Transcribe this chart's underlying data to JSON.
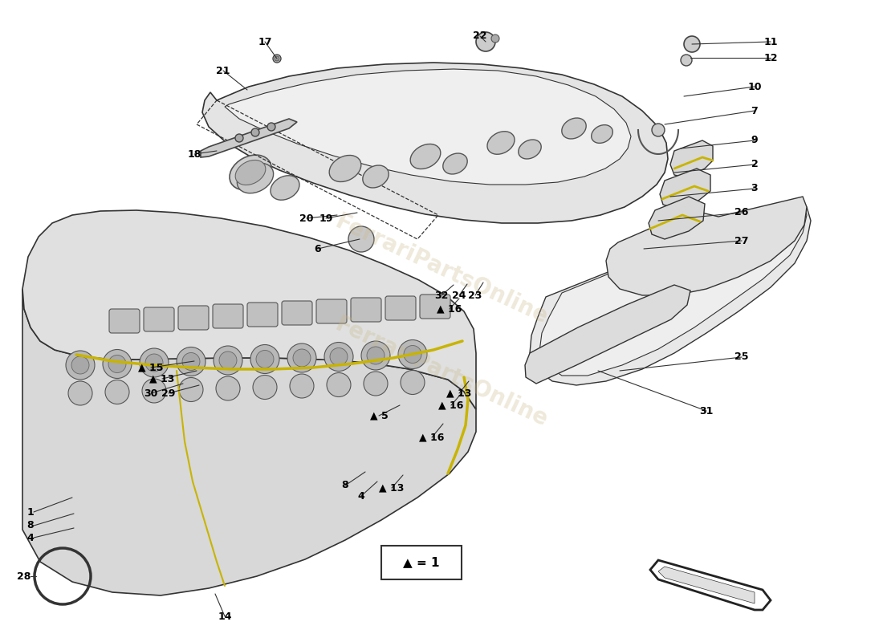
{
  "bg_color": "#ffffff",
  "line_color": "#333333",
  "fill_light": "#e8e8e8",
  "fill_mid": "#d4d4d4",
  "fill_dark": "#c0c0c0",
  "yellow": "#c8b400",
  "watermark": "FerrariPartsOnline",
  "wm_color": "#c8b87888"
}
